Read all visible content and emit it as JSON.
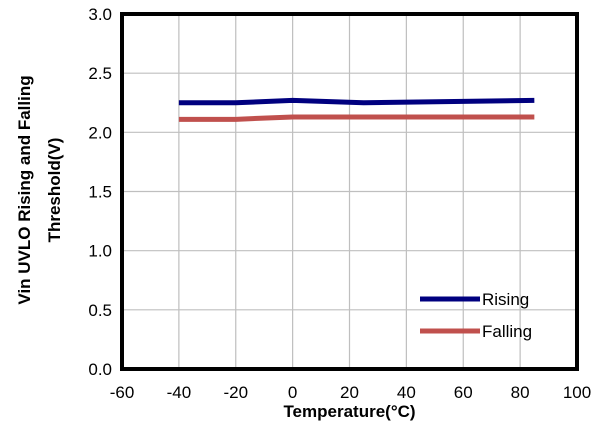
{
  "chart_data": {
    "type": "line",
    "xlabel": "Temperature(°C)",
    "ylabel_lines": [
      "Vin UVLO Rising and Falling",
      "Threshold(V)"
    ],
    "xlim": [
      -60,
      100
    ],
    "ylim": [
      0.0,
      3.0
    ],
    "x_ticks": [
      -60,
      -40,
      -20,
      0,
      20,
      40,
      60,
      80,
      100
    ],
    "y_ticks": [
      0.0,
      0.5,
      1.0,
      1.5,
      2.0,
      2.5,
      3.0
    ],
    "x_tick_labels": [
      "-60",
      "-40",
      "-20",
      "0",
      "20",
      "40",
      "60",
      "80",
      "100"
    ],
    "y_tick_labels": [
      "0.0",
      "0.5",
      "1.0",
      "1.5",
      "2.0",
      "2.5",
      "3.0"
    ],
    "grid": true,
    "legend_position": "bottom-right",
    "series": [
      {
        "name": "Rising",
        "color": "#00007f",
        "x": [
          -40,
          -20,
          0,
          25,
          85
        ],
        "y": [
          2.25,
          2.25,
          2.27,
          2.25,
          2.27
        ]
      },
      {
        "name": "Falling",
        "color": "#c0504d",
        "x": [
          -40,
          -20,
          0,
          25,
          85
        ],
        "y": [
          2.11,
          2.11,
          2.13,
          2.13,
          2.13
        ]
      }
    ]
  }
}
